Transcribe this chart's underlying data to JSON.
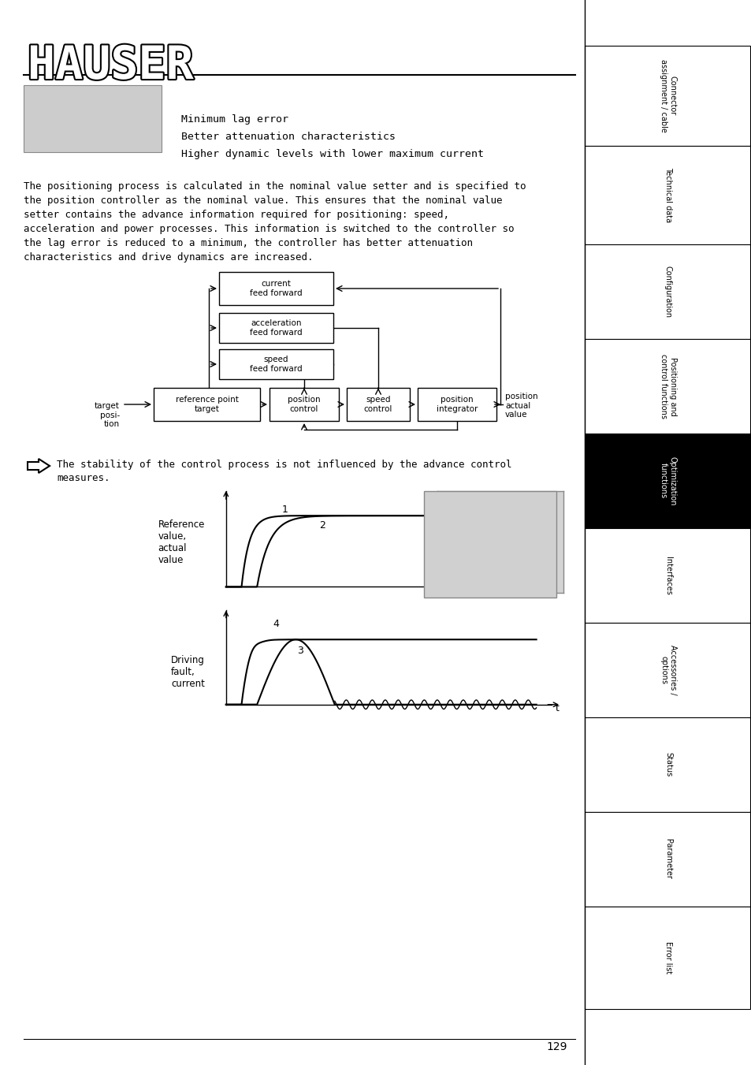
{
  "title": "HAUSER",
  "page_number": "129",
  "bg_color": "#ffffff",
  "sidebar_labels": [
    "Connector\nassignment / cable",
    "Technical data",
    "Configuration",
    "Positioning and\ncontrol functions",
    "Optimization\nfunctions",
    "Interfaces",
    "Accessories /\noptions",
    "Status",
    "Parameter",
    "Error list"
  ],
  "sidebar_active_idx": 4,
  "bullet_items": [
    "Minimum lag error",
    "Better attenuation characteristics",
    "Higher dynamic levels with lower maximum current"
  ],
  "body_text_lines": [
    "The positioning process is calculated in the nominal value setter and is specified to",
    "the position controller as the nominal value. This ensures that the nominal value",
    "setter contains the advance information required for positioning: speed,",
    "acceleration and power processes. This information is switched to the controller so",
    "the lag error is reduced to a minimum, the controller has better attenuation",
    "characteristics and drive dynamics are increased."
  ],
  "note_line1": "The stability of the control process is not influenced by the advance control",
  "note_line2": "measures.",
  "graph1_ylabel": "Reference\nvalue,\nactual\nvalue",
  "graph2_ylabel": "Driving\nfault,\ncurrent",
  "position_actual_value_label": "position\nactual\nvalue"
}
